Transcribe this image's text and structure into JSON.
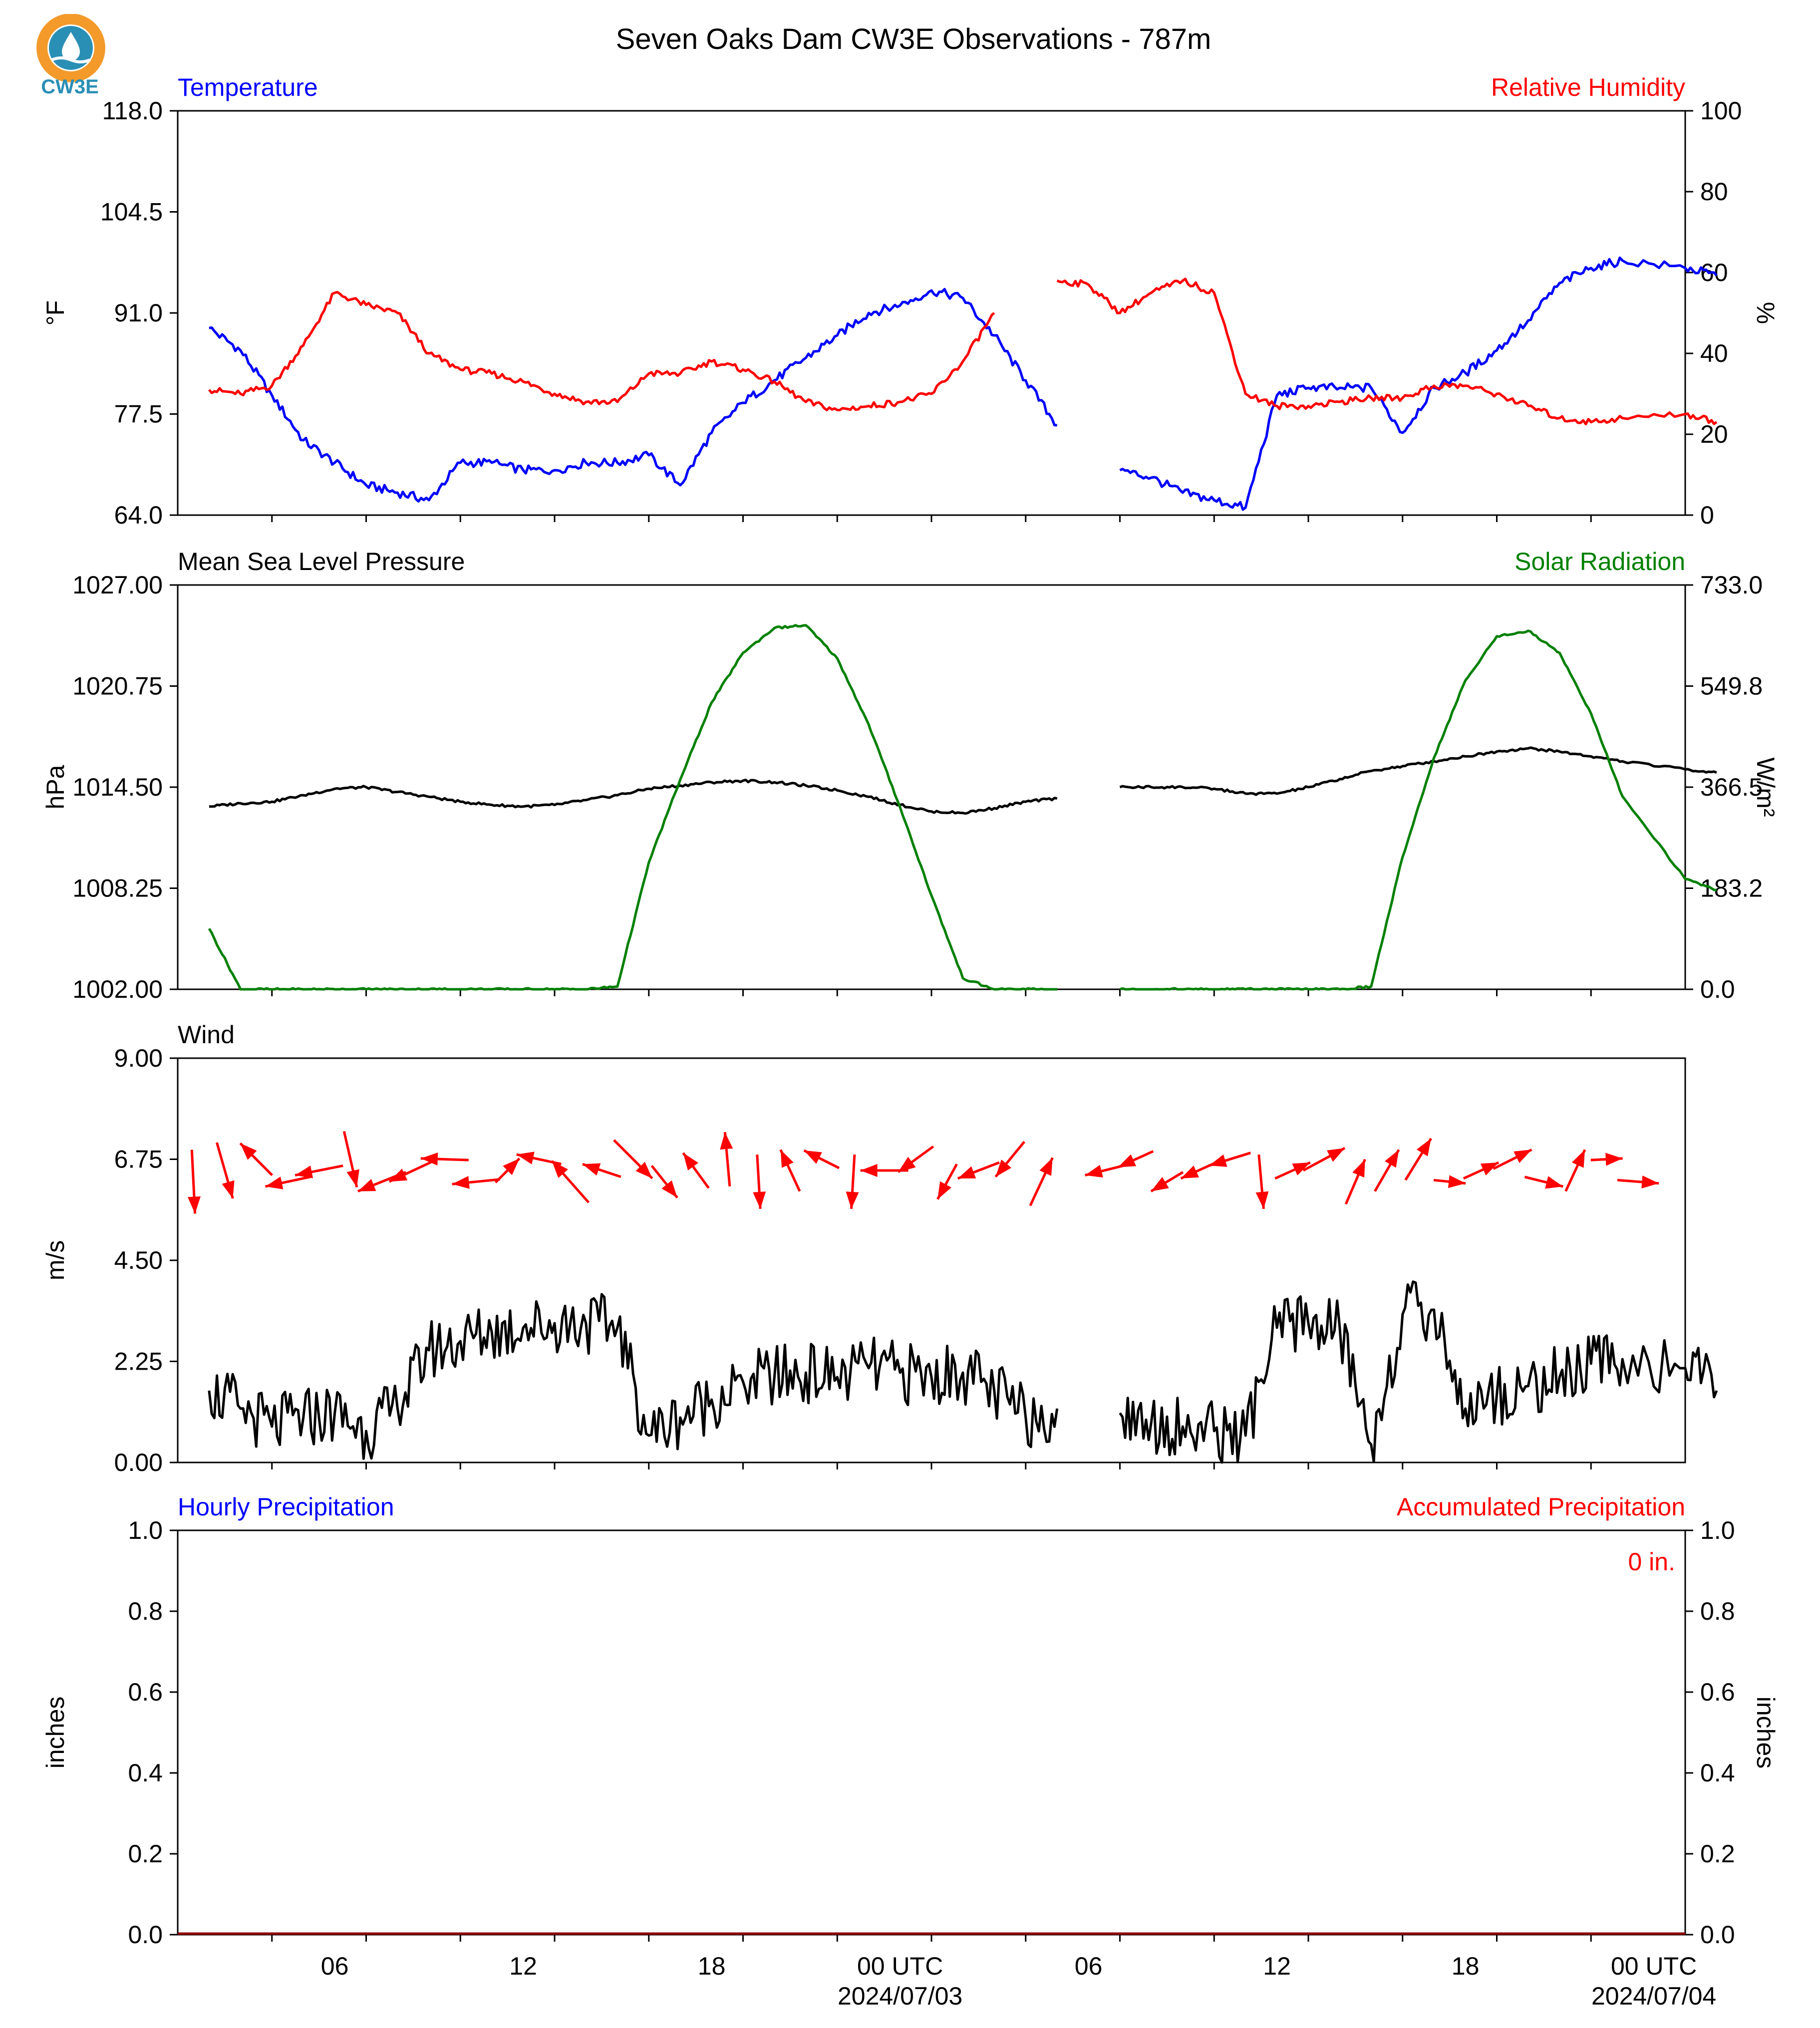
{
  "title": "Seven Oaks Dam CW3E Observations - 787m",
  "logo_text": "CW3E",
  "colors": {
    "temperature": "#0000ff",
    "humidity": "#ff0000",
    "pressure": "#000000",
    "solar": "#008000",
    "wind": "#000000",
    "arrows": "#ff0000",
    "hourly_precip": "#0000ff",
    "accum_precip": "#ff0000"
  },
  "x_ticks": [
    "06",
    "12",
    "18",
    "00 UTC",
    "06",
    "12",
    "18",
    "00 UTC"
  ],
  "x_dates": [
    "2024/07/03",
    "2024/07/04"
  ],
  "chart_data": [
    {
      "type": "line",
      "left_title": "Temperature",
      "right_title": "Relative Humidity",
      "ylabel_left": "°F",
      "ylabel_right": "%",
      "ylim_left": [
        64.0,
        118.0
      ],
      "ylim_right": [
        0,
        100
      ],
      "yticks_left": [
        "64.0",
        "77.5",
        "91.0",
        "104.5",
        "118.0"
      ],
      "yticks_right": [
        "0",
        "20",
        "40",
        "60",
        "80",
        "100"
      ],
      "x_hours": [
        1,
        2,
        3,
        4,
        5,
        6,
        7,
        8,
        9,
        10,
        11,
        12,
        13,
        14,
        15,
        16,
        17,
        18,
        19,
        20,
        21,
        22,
        23,
        24,
        25,
        26,
        27,
        28,
        29,
        30,
        31,
        32,
        33,
        34,
        35,
        36,
        37,
        38,
        39,
        40,
        41,
        42,
        43,
        44,
        45,
        46,
        48,
        49
      ],
      "series": [
        {
          "name": "Temperature",
          "axis": "left",
          "values": [
            89,
            86,
            80,
            74,
            71,
            68,
            67,
            66,
            71,
            71,
            70,
            70,
            71,
            71,
            72,
            68,
            75,
            79,
            82,
            85,
            88,
            91,
            92,
            94,
            93,
            88,
            82,
            76,
            null,
            70,
            69,
            67,
            66,
            65,
            80,
            81,
            81,
            81,
            75,
            81,
            83,
            86,
            90,
            95,
            97,
            98,
            97,
            96
          ]
        },
        {
          "name": "Relative Humidity",
          "axis": "right",
          "values": [
            31,
            30,
            32,
            42,
            55,
            52,
            50,
            40,
            36,
            35,
            33,
            30,
            28,
            28,
            35,
            35,
            38,
            36,
            33,
            28,
            26,
            27,
            28,
            30,
            38,
            50,
            null,
            58,
            57,
            50,
            55,
            58,
            55,
            30,
            27,
            27,
            28,
            29,
            29,
            32,
            32,
            30,
            27,
            24,
            23,
            24,
            25,
            23
          ]
        }
      ]
    },
    {
      "type": "line",
      "left_title": "Mean Sea Level Pressure",
      "right_title": "Solar Radiation",
      "ylabel_left": "hPa",
      "ylabel_right": "W/m²",
      "ylim_left": [
        1002.0,
        1027.0
      ],
      "ylim_right": [
        0.0,
        733.0
      ],
      "yticks_left": [
        "1002.00",
        "1008.25",
        "1014.50",
        "1020.75",
        "1027.00"
      ],
      "yticks_right": [
        "0.0",
        "183.2",
        "366.5",
        "549.8",
        "733.0"
      ],
      "x_hours": [
        1,
        2,
        3,
        4,
        5,
        6,
        7,
        8,
        9,
        10,
        11,
        12,
        13,
        14,
        15,
        16,
        17,
        18,
        19,
        20,
        21,
        22,
        23,
        24,
        25,
        26,
        27,
        28,
        29,
        30,
        31,
        32,
        33,
        34,
        35,
        36,
        37,
        38,
        39,
        40,
        41,
        42,
        43,
        44,
        45,
        46,
        48,
        49
      ],
      "series": [
        {
          "name": "Mean Sea Level Pressure",
          "axis": "left",
          "values": [
            1013.3,
            1013.5,
            1013.6,
            1014.0,
            1014.4,
            1014.5,
            1014.2,
            1013.9,
            1013.6,
            1013.4,
            1013.3,
            1013.4,
            1013.7,
            1014.0,
            1014.4,
            1014.6,
            1014.8,
            1014.9,
            1014.8,
            1014.6,
            1014.3,
            1013.9,
            1013.4,
            1013.0,
            1012.9,
            1013.2,
            1013.6,
            1013.8,
            null,
            1014.5,
            1014.5,
            1014.5,
            1014.4,
            1014.1,
            1014.1,
            1014.5,
            1015.0,
            1015.5,
            1015.8,
            1016.1,
            1016.4,
            1016.7,
            1016.9,
            1016.7,
            1016.4,
            1016.1,
            1015.6,
            1015.4
          ]
        },
        {
          "name": "Solar Radiation",
          "axis": "right",
          "values": [
            110,
            0,
            0,
            0,
            0,
            0,
            0,
            0,
            0,
            0,
            0,
            0,
            0,
            5,
            230,
            380,
            520,
            610,
            655,
            660,
            600,
            480,
            330,
            170,
            20,
            0,
            0,
            0,
            null,
            0,
            0,
            0,
            0,
            0,
            0,
            0,
            0,
            5,
            240,
            420,
            560,
            640,
            650,
            610,
            500,
            350,
            200,
            180
          ]
        }
      ]
    },
    {
      "type": "line",
      "left_title": "Wind",
      "ylabel_left": "m/s",
      "ylim_left": [
        0.0,
        9.0
      ],
      "yticks_left": [
        "0.00",
        "2.25",
        "4.50",
        "6.75",
        "9.00"
      ],
      "x_hours": [
        1,
        2,
        3,
        4,
        5,
        6,
        7,
        8,
        9,
        10,
        11,
        12,
        13,
        14,
        15,
        16,
        17,
        18,
        19,
        20,
        21,
        22,
        23,
        24,
        25,
        26,
        27,
        28,
        29,
        30,
        31,
        32,
        33,
        34,
        35,
        36,
        37,
        38,
        39,
        40,
        41,
        42,
        43,
        44,
        45,
        46,
        48,
        49
      ],
      "series": [
        {
          "name": "Wind",
          "axis": "left",
          "values": [
            1.6,
            1.2,
            0.8,
            1.0,
            1.1,
            0.7,
            1.2,
            2.5,
            2.7,
            2.9,
            3.0,
            3.1,
            3.1,
            3.0,
            0.6,
            1.0,
            1.4,
            1.8,
            1.9,
            2.0,
            1.9,
            2.1,
            2.0,
            1.9,
            2.0,
            1.6,
            1.0,
            1.2,
            null,
            1.1,
            0.9,
            0.8,
            0.7,
            0.6,
            3.0,
            3.1,
            3.0,
            0.4,
            3.3,
            3.4,
            1.2,
            1.5,
            1.7,
            1.9,
            2.2,
            2.3,
            2.1,
            1.6
          ]
        }
      ],
      "arrows": [
        {
          "hour": 1,
          "u": 0.2,
          "v": -4.0
        },
        {
          "hour": 2,
          "u": 1.0,
          "v": -3.5
        },
        {
          "hour": 3,
          "u": -2.0,
          "v": 2.0
        },
        {
          "hour": 4,
          "u": -2.8,
          "v": -0.6
        },
        {
          "hour": 5,
          "u": -3.0,
          "v": -0.6
        },
        {
          "hour": 6,
          "u": 0.8,
          "v": -3.5
        },
        {
          "hour": 7,
          "u": -3.0,
          "v": -1.2
        },
        {
          "hour": 8,
          "u": -3.0,
          "v": -1.4
        },
        {
          "hour": 9,
          "u": -3.0,
          "v": 0.1
        },
        {
          "hour": 10,
          "u": -3.0,
          "v": -0.3
        },
        {
          "hour": 11,
          "u": 1.5,
          "v": 1.5
        },
        {
          "hour": 12,
          "u": -2.8,
          "v": 0.6
        },
        {
          "hour": 13,
          "u": -2.3,
          "v": 2.6
        },
        {
          "hour": 14,
          "u": -2.4,
          "v": 0.8
        },
        {
          "hour": 15,
          "u": 2.4,
          "v": -2.4
        },
        {
          "hour": 16,
          "u": 1.6,
          "v": -2.0
        },
        {
          "hour": 17,
          "u": -1.6,
          "v": 2.2
        },
        {
          "hour": 18,
          "u": -0.3,
          "v": 3.4
        },
        {
          "hour": 19,
          "u": 0.2,
          "v": -3.4
        },
        {
          "hour": 20,
          "u": -1.2,
          "v": 2.6
        },
        {
          "hour": 21,
          "u": -2.2,
          "v": 1.1
        },
        {
          "hour": 22,
          "u": -0.2,
          "v": -3.4
        },
        {
          "hour": 23,
          "u": -3.0,
          "v": 0.0
        },
        {
          "hour": 24,
          "u": -2.2,
          "v": -1.6
        },
        {
          "hour": 25,
          "u": -1.2,
          "v": -2.2
        },
        {
          "hour": 26,
          "u": -2.6,
          "v": -1.0
        },
        {
          "hour": 27,
          "u": -1.8,
          "v": -2.2
        },
        {
          "hour": 28,
          "u": 1.4,
          "v": 3.0
        },
        {
          "hour": 30,
          "u": -2.4,
          "v": -0.6
        },
        {
          "hour": 31,
          "u": -2.2,
          "v": -1.0
        },
        {
          "hour": 32,
          "u": -2.0,
          "v": -1.2
        },
        {
          "hour": 33,
          "u": -2.2,
          "v": -1.0
        },
        {
          "hour": 34,
          "u": -2.6,
          "v": -0.8
        },
        {
          "hour": 35,
          "u": 0.3,
          "v": -3.4
        },
        {
          "hour": 36,
          "u": 2.2,
          "v": 1.0
        },
        {
          "hour": 37,
          "u": 2.6,
          "v": 1.4
        },
        {
          "hour": 38,
          "u": 1.2,
          "v": 2.8
        },
        {
          "hour": 39,
          "u": 1.5,
          "v": 2.6
        },
        {
          "hour": 40,
          "u": 1.6,
          "v": 2.6
        },
        {
          "hour": 41,
          "u": 2.0,
          "v": -0.2
        },
        {
          "hour": 42,
          "u": 2.2,
          "v": 1.0
        },
        {
          "hour": 43,
          "u": 2.4,
          "v": 1.2
        },
        {
          "hour": 44,
          "u": 2.4,
          "v": -0.6
        },
        {
          "hour": 45,
          "u": 1.2,
          "v": 2.6
        },
        {
          "hour": 46,
          "u": 2.0,
          "v": 0.1
        },
        {
          "hour": 47,
          "u": 2.6,
          "v": -0.2
        }
      ]
    },
    {
      "type": "line",
      "left_title": "Hourly Precipitation",
      "right_title": "Accumulated Precipitation",
      "ylabel_left": "inches",
      "ylabel_right": "inches",
      "ylim_left": [
        0.0,
        1.0
      ],
      "ylim_right": [
        0.0,
        1.0
      ],
      "yticks_left": [
        "0.0",
        "0.2",
        "0.4",
        "0.6",
        "0.8",
        "1.0"
      ],
      "yticks_right": [
        "0.0",
        "0.2",
        "0.4",
        "0.6",
        "0.8",
        "1.0"
      ],
      "annotation": "0 in.",
      "series": [
        {
          "name": "Hourly Precipitation",
          "axis": "left",
          "values": [
            0
          ]
        },
        {
          "name": "Accumulated Precipitation",
          "axis": "right",
          "values": [
            0
          ]
        }
      ]
    }
  ]
}
